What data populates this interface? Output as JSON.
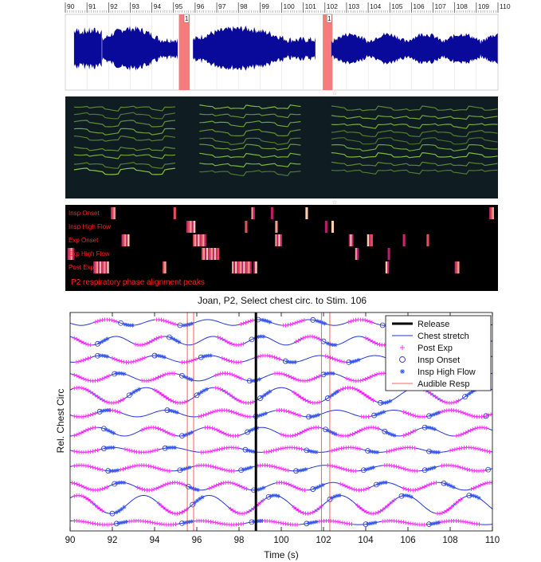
{
  "colors": {
    "waveform": "#0a0a9a",
    "audible_band": "#f47c7c",
    "spectrogram_bg": "#0f1c22",
    "spectrogram_line": "#8fd23c",
    "phase_bg": "#000000",
    "phase_label": "#ff2222",
    "chest": "#2233dd",
    "post_exp": "#ff33ff",
    "insp_onset": "#3333cc",
    "insp_high_flow": "#3355ee",
    "release": "#000000",
    "audible_resp": "#ff3333"
  },
  "waveform_panel": {
    "ruler_ticks": [
      "90",
      "91",
      "92",
      "93",
      "94",
      "95",
      "96",
      "97",
      "98",
      "99",
      "100",
      "101",
      "102",
      "103",
      "104",
      "105",
      "106",
      "107",
      "108",
      "109",
      "110"
    ],
    "segment_markers": [
      {
        "label": "1",
        "at": 95.6
      },
      {
        "label": "1",
        "at": 102.2
      }
    ],
    "audible_segments": [
      [
        95.25,
        95.75
      ],
      [
        101.9,
        102.35
      ]
    ],
    "sound_regions": [
      [
        90.4,
        91.7
      ],
      [
        91.7,
        95.2
      ],
      [
        95.9,
        101.6
      ],
      [
        102.3,
        110
      ]
    ]
  },
  "spectrogram_panel": {
    "bands": [
      [
        90.4,
        95.2
      ],
      [
        96.2,
        101.0
      ],
      [
        102.3,
        110
      ]
    ]
  },
  "phase_panel": {
    "rows": [
      {
        "label": "Insp Onset",
        "marks": [
          [
            92.1,
            92.3
          ],
          [
            95.0,
            95.1
          ],
          [
            98.6,
            98.75
          ],
          [
            99.5,
            99.6
          ],
          [
            101.1,
            101.2
          ],
          [
            109.6,
            109.8
          ]
        ]
      },
      {
        "label": "Insp High Flow",
        "marks": [
          [
            95.6,
            96.0
          ],
          [
            98.3,
            98.4
          ],
          [
            99.7,
            99.8
          ],
          [
            102.0,
            102.1
          ],
          [
            102.3,
            102.4
          ]
        ]
      },
      {
        "label": "Exp Onset",
        "marks": [
          [
            92.6,
            92.95
          ],
          [
            95.9,
            96.5
          ],
          [
            99.7,
            100.0
          ],
          [
            103.1,
            103.3
          ],
          [
            103.95,
            104.2
          ],
          [
            105.6,
            105.7
          ],
          [
            106.7,
            106.8
          ]
        ]
      },
      {
        "label": "Exp High Flow",
        "marks": [
          [
            90.1,
            90.4
          ],
          [
            96.3,
            97.1
          ],
          [
            103.4,
            103.55
          ],
          [
            104.9,
            105.0
          ]
        ]
      },
      {
        "label": "Post Exp",
        "marks": [
          [
            91.3,
            92.0
          ],
          [
            94.5,
            94.65
          ],
          [
            97.7,
            98.6
          ],
          [
            98.7,
            98.85
          ],
          [
            104.8,
            104.95
          ],
          [
            108.0,
            108.2
          ]
        ]
      }
    ],
    "caption": "P2 respiratory phase alignment peaks"
  },
  "chart_data": {
    "type": "line",
    "title": "Joan, P2, Select chest circ. to Stim. 106",
    "xlabel": "Time (s)",
    "ylabel": "Rel. Chest Circ",
    "xlim": [
      90,
      110
    ],
    "xticks": [
      "90",
      "92",
      "94",
      "96",
      "98",
      "100",
      "102",
      "104",
      "106",
      "108",
      "110"
    ],
    "release_time": 98.8,
    "audible_resp_times": [
      95.55,
      95.85,
      101.9,
      102.3
    ],
    "legend": {
      "position": "top-right",
      "entries": [
        {
          "label": "Release",
          "marker": "thick-line"
        },
        {
          "label": "Chest stretch",
          "marker": "line"
        },
        {
          "label": "Post Exp",
          "marker": "plus"
        },
        {
          "label": "Insp Onset",
          "marker": "circle"
        },
        {
          "label": "Insp High Flow",
          "marker": "star"
        },
        {
          "label": "Audible Resp",
          "marker": "thin-line"
        }
      ]
    },
    "traces": [
      {
        "amplitude": 0.6,
        "period": 2.4,
        "phase": 0.2,
        "post_exp": [
          [
            91.2,
            92.2
          ],
          [
            94.1,
            95.0
          ],
          [
            98.1,
            98.7
          ],
          [
            100.1,
            101.1
          ],
          [
            103.2,
            104.4
          ],
          [
            106.0,
            106.6
          ],
          [
            108.7,
            109.4
          ]
        ],
        "insp_onset": [
          92.4,
          95.2,
          98.9,
          101.5,
          104.8,
          107.6
        ],
        "insp_high_flow": [
          92.9,
          95.7,
          99.4,
          102.0,
          105.3,
          108.0
        ]
      },
      {
        "amplitude": 0.9,
        "period": 2.3,
        "phase": 1.1,
        "post_exp": [
          [
            90.2,
            91.0
          ],
          [
            93.1,
            94.4
          ],
          [
            97.0,
            98.3
          ],
          [
            100.7,
            101.8
          ],
          [
            104.0,
            105.4
          ],
          [
            107.7,
            109.0
          ]
        ],
        "insp_onset": [
          91.3,
          94.7,
          98.6,
          102.0,
          105.8,
          109.3
        ],
        "insp_high_flow": [
          91.7,
          95.1,
          99.1,
          102.5,
          106.2,
          109.7
        ]
      },
      {
        "amplitude": 0.7,
        "period": 2.6,
        "phase": 0.5,
        "post_exp": [
          [
            90.3,
            91.0
          ],
          [
            92.0,
            93.6
          ],
          [
            95.3,
            96.0
          ],
          [
            97.2,
            98.1
          ],
          [
            98.8,
            100.0
          ],
          [
            102.1,
            103.0
          ],
          [
            105.2,
            106.6
          ],
          [
            108.5,
            109.6
          ]
        ],
        "insp_onset": [
          91.3,
          94.0,
          96.2,
          100.2,
          103.2,
          106.9,
          109.8
        ],
        "insp_high_flow": [
          91.7,
          94.4,
          96.6,
          100.6,
          103.6,
          107.3
        ]
      },
      {
        "amplitude": 0.8,
        "period": 2.5,
        "phase": 2.0,
        "post_exp": [
          [
            90.2,
            91.9
          ],
          [
            93.4,
            95.0
          ],
          [
            96.9,
            98.2
          ],
          [
            99.7,
            101.8
          ],
          [
            103.1,
            105.4
          ],
          [
            107.2,
            108.3
          ]
        ],
        "insp_onset": [
          92.1,
          95.3,
          98.5,
          102.0,
          105.7,
          108.6
        ],
        "insp_high_flow": [
          92.5,
          95.7,
          98.9,
          102.4,
          106.1,
          109.0
        ]
      },
      {
        "amplitude": 1.6,
        "period": 3.2,
        "phase": 0.0,
        "post_exp": [
          [
            90.2,
            92.6
          ],
          [
            94.0,
            95.6
          ],
          [
            96.9,
            98.7
          ],
          [
            100.6,
            101.9
          ],
          [
            102.6,
            104.4
          ],
          [
            106.2,
            108.5
          ]
        ],
        "insp_onset": [
          92.8,
          96.0,
          99.0,
          102.2,
          104.7,
          108.7
        ],
        "insp_high_flow": [
          93.2,
          96.4,
          99.4,
          102.6,
          105.1,
          109.1
        ]
      },
      {
        "amplitude": 0.7,
        "period": 2.7,
        "phase": 1.5,
        "post_exp": [
          [
            90.2,
            91.2
          ],
          [
            91.8,
            92.4
          ],
          [
            96.1,
            98.6
          ],
          [
            99.8,
            100.9
          ],
          [
            103.8,
            104.2
          ],
          [
            105.8,
            106.8
          ],
          [
            107.4,
            110.0
          ]
        ],
        "insp_onset": [
          91.4,
          94.6,
          98.8,
          101.3,
          104.4,
          107.0,
          109.7
        ],
        "insp_high_flow": [
          91.8,
          95.0,
          99.2,
          101.7,
          104.8,
          107.4
        ]
      },
      {
        "amplitude": 0.9,
        "period": 2.6,
        "phase": 0.9,
        "post_exp": [
          [
            90.2,
            91.2
          ],
          [
            93.4,
            95.0
          ],
          [
            96.4,
            98.0
          ],
          [
            100.0,
            101.8
          ],
          [
            102.5,
            104.6
          ],
          [
            105.8,
            106.4
          ],
          [
            108.3,
            109.8
          ]
        ],
        "insp_onset": [
          91.6,
          95.3,
          98.4,
          102.1,
          104.9,
          106.8
        ],
        "insp_high_flow": [
          92.0,
          95.7,
          98.8,
          102.5,
          105.3,
          107.2
        ]
      },
      {
        "amplitude": 0.5,
        "period": 2.8,
        "phase": 2.4,
        "post_exp": [
          [
            90.2,
            91.4
          ],
          [
            92.6,
            94.2
          ],
          [
            96.2,
            98.0
          ],
          [
            99.2,
            101.0
          ],
          [
            102.3,
            103.8
          ],
          [
            105.0,
            106.4
          ],
          [
            108.0,
            109.9
          ]
        ],
        "insp_onset": [
          91.6,
          94.5,
          98.3,
          101.2,
          104.1,
          107.0
        ],
        "insp_high_flow": [
          92.0,
          94.9,
          98.7,
          101.6,
          104.5,
          107.4
        ]
      },
      {
        "amplitude": 0.6,
        "period": 2.9,
        "phase": 0.3,
        "post_exp": [
          [
            90.2,
            91.6
          ],
          [
            92.4,
            94.8
          ],
          [
            96.0,
            97.8
          ],
          [
            98.9,
            100.4
          ],
          [
            102.2,
            103.6
          ],
          [
            104.9,
            106.5
          ],
          [
            107.6,
            109.6
          ]
        ],
        "insp_onset": [
          91.8,
          95.2,
          98.1,
          100.7,
          103.9,
          106.8,
          109.8
        ],
        "insp_high_flow": [
          92.2,
          95.6,
          98.5,
          101.1,
          104.3,
          107.2
        ]
      },
      {
        "amplitude": 0.8,
        "period": 2.5,
        "phase": 1.7,
        "post_exp": [
          [
            90.1,
            91.8
          ],
          [
            93.2,
            95.4
          ],
          [
            96.6,
            98.4
          ],
          [
            99.8,
            101.2
          ],
          [
            102.8,
            104.2
          ],
          [
            105.8,
            107.4
          ],
          [
            109.0,
            110.0
          ]
        ],
        "insp_onset": [
          92.1,
          95.6,
          98.7,
          101.5,
          104.5,
          107.7
        ],
        "insp_high_flow": [
          92.5,
          96.0,
          99.1,
          101.9,
          104.9,
          108.1
        ]
      },
      {
        "amplitude": 1.9,
        "period": 3.1,
        "phase": 0.6,
        "post_exp": [
          [
            90.2,
            91.6
          ],
          [
            94.2,
            95.6
          ],
          [
            97.6,
            99.2
          ],
          [
            100.6,
            102.0
          ],
          [
            103.6,
            105.4
          ],
          [
            107.4,
            108.6
          ]
        ],
        "insp_onset": [
          92.0,
          95.8,
          99.4,
          102.3,
          105.7,
          108.9
        ],
        "insp_high_flow": [
          92.5,
          96.2,
          99.8,
          102.7,
          106.1,
          109.3
        ]
      },
      {
        "amplitude": 0.4,
        "period": 3.0,
        "phase": 1.2,
        "post_exp": [
          [
            90.2,
            92.0
          ],
          [
            92.8,
            95.0
          ],
          [
            96.0,
            98.2
          ],
          [
            99.0,
            100.8
          ],
          [
            101.8,
            103.4
          ],
          [
            104.8,
            106.8
          ],
          [
            107.4,
            109.4
          ]
        ],
        "insp_onset": [
          92.2,
          95.3,
          98.6,
          101.2,
          104.0,
          107.0
        ],
        "insp_high_flow": [
          92.6,
          95.7,
          99.0,
          101.6,
          104.4,
          107.4
        ]
      }
    ]
  }
}
